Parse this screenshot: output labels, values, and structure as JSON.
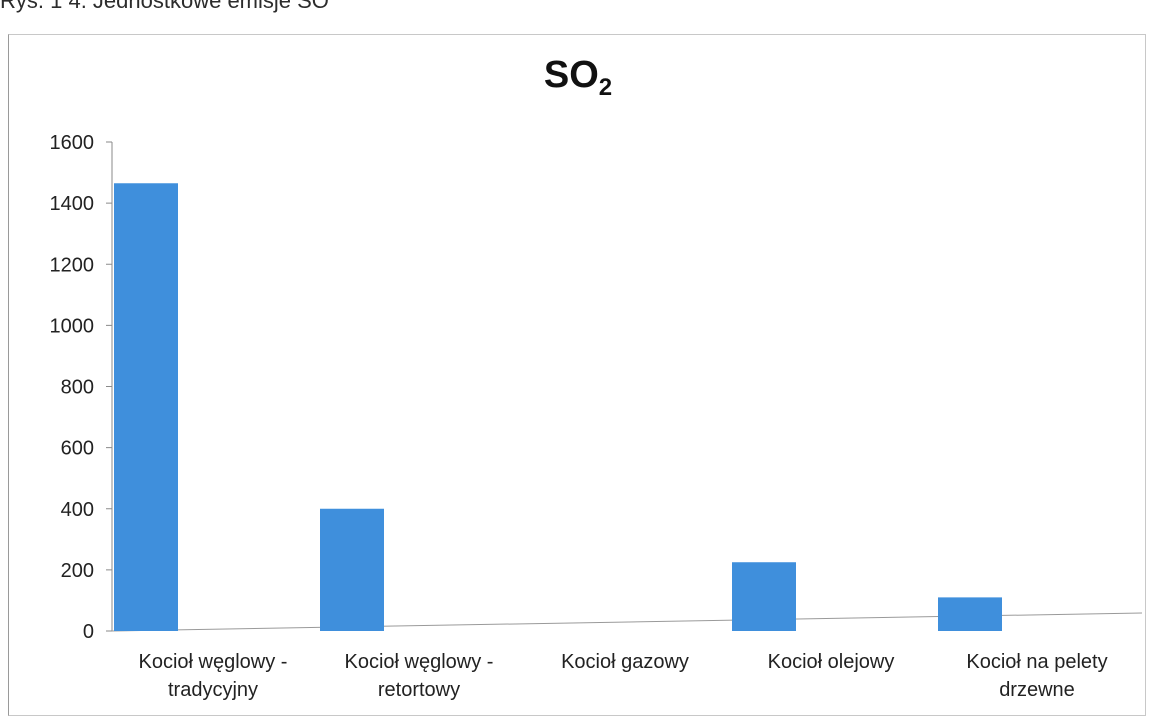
{
  "caption": "Rys. 1 4. Jednostkowe emisje SO",
  "chart_data": {
    "type": "bar",
    "title": "SO",
    "title_sub": "2",
    "categories": [
      [
        "Kocioł węglowy -",
        "tradycyjny"
      ],
      [
        "Kocioł węglowy -",
        "retortowy"
      ],
      [
        "Kocioł gazowy"
      ],
      [
        "Kocioł olejowy"
      ],
      [
        "Kocioł na pelety",
        "drzewne"
      ]
    ],
    "values": [
      1465,
      400,
      0,
      225,
      110
    ],
    "ylim": [
      0,
      1600
    ],
    "yticks": [
      0,
      200,
      400,
      600,
      800,
      1000,
      1200,
      1400,
      1600
    ],
    "bar_color": "#3f8fdc",
    "grid": false
  }
}
